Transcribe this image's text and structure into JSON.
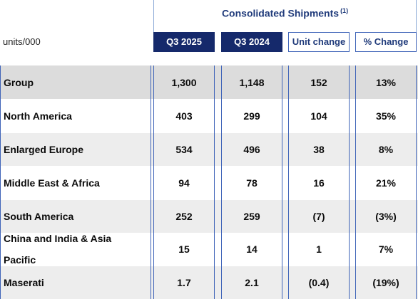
{
  "header": {
    "title": "Consolidated Shipments",
    "footnote": "(1)",
    "units": "units/000",
    "columns": [
      "Q3 2025",
      "Q3 2024",
      "Unit change",
      "% Change"
    ]
  },
  "rows": [
    {
      "label": "Group",
      "values": [
        "1,300",
        "1,148",
        "152",
        "13%"
      ]
    },
    {
      "label": "North America",
      "values": [
        "403",
        "299",
        "104",
        "35%"
      ]
    },
    {
      "label": "Enlarged Europe",
      "values": [
        "534",
        "496",
        "38",
        "8%"
      ]
    },
    {
      "label": "Middle East & Africa",
      "values": [
        "94",
        "78",
        "16",
        "21%"
      ]
    },
    {
      "label": "South America",
      "values": [
        "252",
        "259",
        "(7)",
        "(3%)"
      ]
    },
    {
      "label": "China and India & Asia Pacific",
      "values": [
        "15",
        "14",
        "1",
        "7%"
      ]
    },
    {
      "label": "Maserati",
      "values": [
        "1.7",
        "2.1",
        "(0.4)",
        "(19%)"
      ]
    }
  ],
  "colors": {
    "dark_header": "#15296b",
    "accent_border": "#3e63b8",
    "title_text": "#1f3a7a",
    "group_row_bg": "#dcdcdc",
    "alt_row_bg": "#ededed"
  }
}
